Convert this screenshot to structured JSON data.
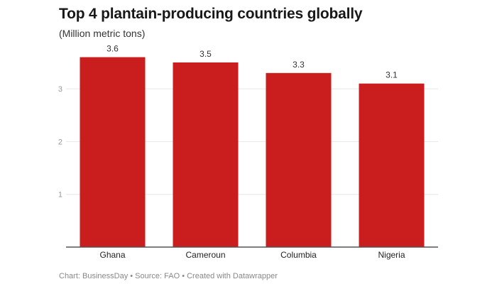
{
  "chart_data": {
    "type": "bar",
    "title": "Top 4 plantain-producing countries globally",
    "subtitle": "(Million metric tons)",
    "categories": [
      "Ghana",
      "Cameroun",
      "Columbia",
      "Nigeria"
    ],
    "values": [
      3.6,
      3.5,
      3.3,
      3.1
    ],
    "data_labels": [
      "3.6",
      "3.5",
      "3.3",
      "3.1"
    ],
    "yticks": [
      1,
      2,
      3
    ],
    "ylim": [
      0,
      3.6
    ],
    "grid": true,
    "bar_color": "#c91d1e",
    "footer": "Chart: BusinessDay • Source: FAO • Created with Datawrapper"
  }
}
